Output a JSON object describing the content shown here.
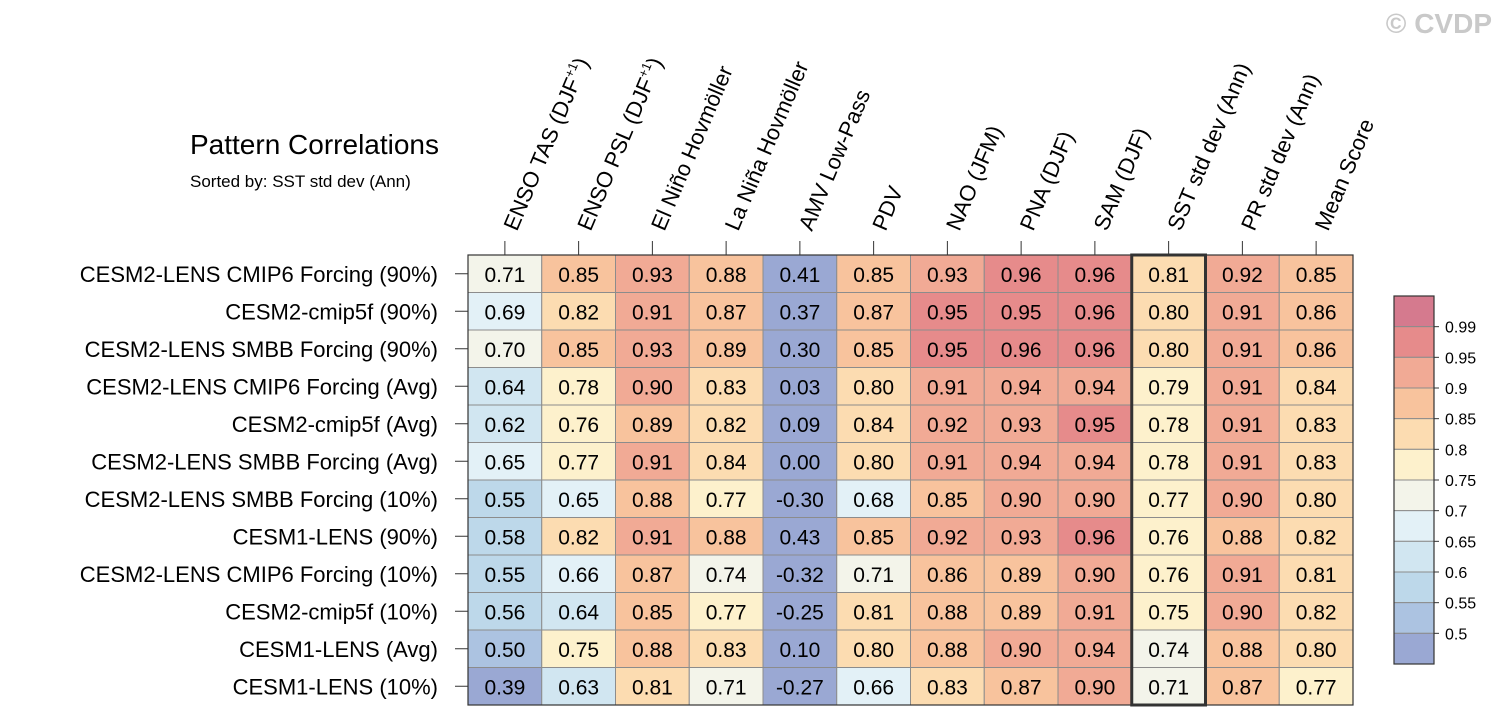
{
  "watermark": "© CVDP",
  "chart_data": {
    "type": "heatmap",
    "title": "Pattern Correlations",
    "subtitle": "Sorted by: SST std dev (Ann)",
    "columns": [
      {
        "pre": "ENSO TAS (DJF",
        "sup": "+1",
        "post": ")"
      },
      {
        "pre": "ENSO PSL (DJF",
        "sup": "+1",
        "post": ")"
      },
      {
        "pre": "El Niño Hovmöller",
        "sup": "",
        "post": ""
      },
      {
        "pre": "La Niña Hovmöller",
        "sup": "",
        "post": ""
      },
      {
        "pre": "AMV Low-Pass",
        "sup": "",
        "post": ""
      },
      {
        "pre": "PDV",
        "sup": "",
        "post": ""
      },
      {
        "pre": "NAO (JFM)",
        "sup": "",
        "post": ""
      },
      {
        "pre": "PNA (DJF)",
        "sup": "",
        "post": ""
      },
      {
        "pre": "SAM (DJF)",
        "sup": "",
        "post": ""
      },
      {
        "pre": "SST std dev (Ann)",
        "sup": "",
        "post": ""
      },
      {
        "pre": "PR std dev (Ann)",
        "sup": "",
        "post": ""
      },
      {
        "pre": "Mean Score",
        "sup": "",
        "post": ""
      }
    ],
    "rows": [
      "CESM2-LENS CMIP6 Forcing (90%)",
      "CESM2-cmip5f (90%)",
      "CESM2-LENS SMBB Forcing (90%)",
      "CESM2-LENS CMIP6 Forcing (Avg)",
      "CESM2-cmip5f (Avg)",
      "CESM2-LENS SMBB Forcing (Avg)",
      "CESM2-LENS SMBB Forcing (10%)",
      "CESM1-LENS (90%)",
      "CESM2-LENS CMIP6 Forcing (10%)",
      "CESM2-cmip5f (10%)",
      "CESM1-LENS (Avg)",
      "CESM1-LENS (10%)"
    ],
    "values": [
      [
        "0.71",
        "0.85",
        "0.93",
        "0.88",
        "0.41",
        "0.85",
        "0.93",
        "0.96",
        "0.96",
        "0.81",
        "0.92",
        "0.85"
      ],
      [
        "0.69",
        "0.82",
        "0.91",
        "0.87",
        "0.37",
        "0.87",
        "0.95",
        "0.95",
        "0.96",
        "0.80",
        "0.91",
        "0.86"
      ],
      [
        "0.70",
        "0.85",
        "0.93",
        "0.89",
        "0.30",
        "0.85",
        "0.95",
        "0.96",
        "0.96",
        "0.80",
        "0.91",
        "0.86"
      ],
      [
        "0.64",
        "0.78",
        "0.90",
        "0.83",
        "0.03",
        "0.80",
        "0.91",
        "0.94",
        "0.94",
        "0.79",
        "0.91",
        "0.84"
      ],
      [
        "0.62",
        "0.76",
        "0.89",
        "0.82",
        "0.09",
        "0.84",
        "0.92",
        "0.93",
        "0.95",
        "0.78",
        "0.91",
        "0.83"
      ],
      [
        "0.65",
        "0.77",
        "0.91",
        "0.84",
        "0.00",
        "0.80",
        "0.91",
        "0.94",
        "0.94",
        "0.78",
        "0.91",
        "0.83"
      ],
      [
        "0.55",
        "0.65",
        "0.88",
        "0.77",
        "-0.30",
        "0.68",
        "0.85",
        "0.90",
        "0.90",
        "0.77",
        "0.90",
        "0.80"
      ],
      [
        "0.58",
        "0.82",
        "0.91",
        "0.88",
        "0.43",
        "0.85",
        "0.92",
        "0.93",
        "0.96",
        "0.76",
        "0.88",
        "0.82"
      ],
      [
        "0.55",
        "0.66",
        "0.87",
        "0.74",
        "-0.32",
        "0.71",
        "0.86",
        "0.89",
        "0.90",
        "0.76",
        "0.91",
        "0.81"
      ],
      [
        "0.56",
        "0.64",
        "0.85",
        "0.77",
        "-0.25",
        "0.81",
        "0.88",
        "0.89",
        "0.91",
        "0.75",
        "0.90",
        "0.82"
      ],
      [
        "0.50",
        "0.75",
        "0.88",
        "0.83",
        "0.10",
        "0.80",
        "0.88",
        "0.90",
        "0.94",
        "0.74",
        "0.88",
        "0.80"
      ],
      [
        "0.39",
        "0.63",
        "0.81",
        "0.71",
        "-0.27",
        "0.66",
        "0.83",
        "0.87",
        "0.90",
        "0.71",
        "0.87",
        "0.77"
      ]
    ],
    "highlight_column": 9,
    "colorbar": {
      "levels": [
        0.5,
        0.55,
        0.6,
        0.65,
        0.7,
        0.75,
        0.8,
        0.85,
        0.9,
        0.95,
        0.99
      ],
      "labels": [
        "0.5",
        "0.55",
        "0.6",
        "0.65",
        "0.7",
        "0.75",
        "0.8",
        "0.85",
        "0.9",
        "0.95",
        "0.99"
      ],
      "colors": [
        "#9aa8d3",
        "#acc3e1",
        "#bdd8ea",
        "#d1e6f1",
        "#e3f1f7",
        "#f3f4ea",
        "#fdf1cc",
        "#fcdcb1",
        "#f8c39d",
        "#f1aa95",
        "#e68b8b",
        "#d57a8e"
      ]
    }
  }
}
